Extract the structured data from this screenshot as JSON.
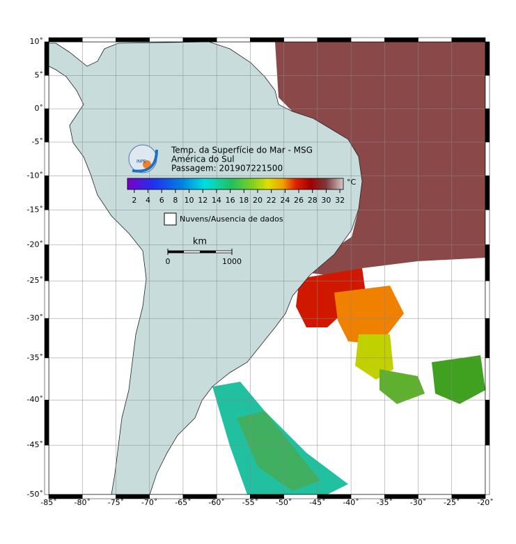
{
  "map": {
    "title_lines": [
      "Temp. da Superfície do Mar - MSG",
      "América do Sul",
      "Passagem: 201907221500"
    ],
    "logo_text": "INPE",
    "lonlim": [
      -85,
      -20
    ],
    "latlim": [
      -50,
      10
    ],
    "lon_ticks": [
      {
        "value": -85,
        "label": "-85˚"
      },
      {
        "value": -80,
        "label": "-80˚"
      },
      {
        "value": -75,
        "label": "-75˚"
      },
      {
        "value": -70,
        "label": "-70˚"
      },
      {
        "value": -65,
        "label": "-65˚"
      },
      {
        "value": -60,
        "label": "-60˚"
      },
      {
        "value": -55,
        "label": "-55˚"
      },
      {
        "value": -50,
        "label": "-50˚"
      },
      {
        "value": -45,
        "label": "-45˚"
      },
      {
        "value": -40,
        "label": "-40˚"
      },
      {
        "value": -35,
        "label": "-35˚"
      },
      {
        "value": -30,
        "label": "-30˚"
      },
      {
        "value": -25,
        "label": "-25˚"
      },
      {
        "value": -20,
        "label": "-20˚"
      }
    ],
    "lat_ticks": [
      {
        "value": 10,
        "label": "10˚"
      },
      {
        "value": 5,
        "label": "5˚"
      },
      {
        "value": 0,
        "label": "0˚"
      },
      {
        "value": -5,
        "label": "-5˚"
      },
      {
        "value": -10,
        "label": "-10˚"
      },
      {
        "value": -15,
        "label": "-15˚"
      },
      {
        "value": -20,
        "label": "-20˚"
      },
      {
        "value": -25,
        "label": "-25˚"
      },
      {
        "value": -30,
        "label": "-30˚"
      },
      {
        "value": -35,
        "label": "-35˚"
      },
      {
        "value": -40,
        "label": "-40˚"
      },
      {
        "value": -45,
        "label": "-45˚"
      },
      {
        "value": -50,
        "label": "-50˚"
      }
    ],
    "colorbar": {
      "unit": "°C",
      "range": [
        1,
        32.5
      ],
      "ticks": [
        2,
        4,
        6,
        8,
        10,
        12,
        14,
        16,
        18,
        20,
        22,
        24,
        26,
        28,
        30,
        32
      ]
    },
    "legend": "Nuvens/Ausencia de dados",
    "scale_bar": {
      "unit": "km",
      "ticks": [
        0,
        1000
      ]
    },
    "grid": true
  }
}
